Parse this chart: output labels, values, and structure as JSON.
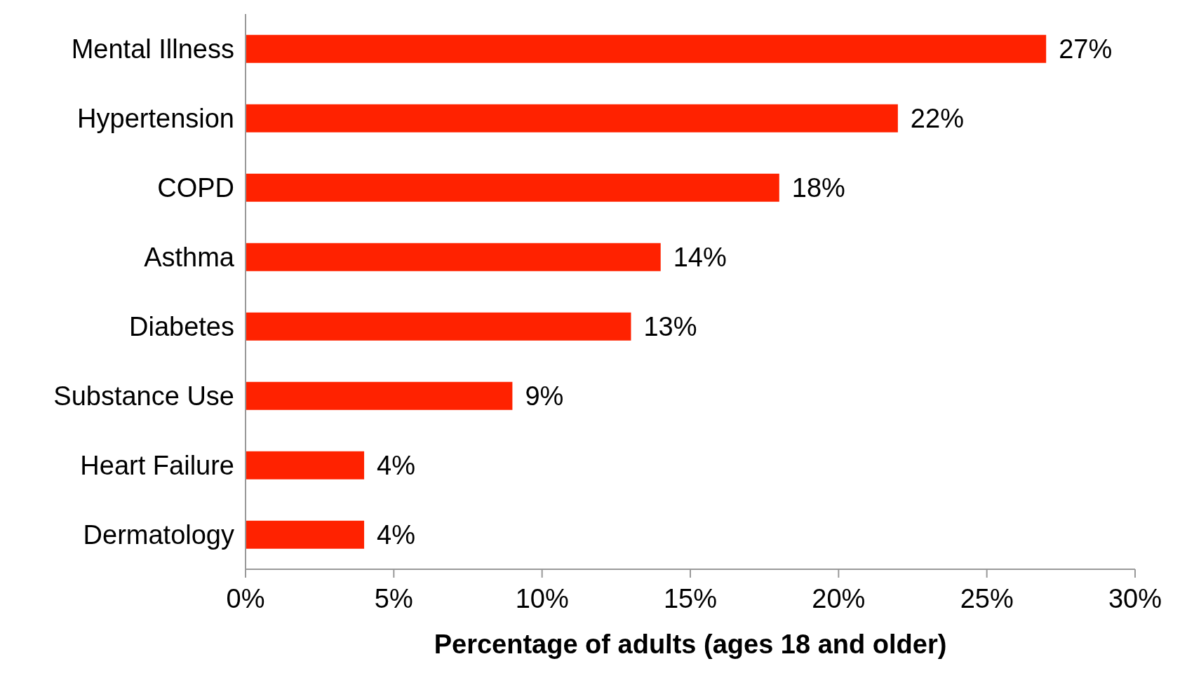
{
  "chart_data": {
    "type": "bar",
    "orientation": "horizontal",
    "categories": [
      "Mental Illness",
      "Hypertension",
      "COPD",
      "Asthma",
      "Diabetes",
      "Substance Use",
      "Heart Failure",
      "Dermatology"
    ],
    "values": [
      27,
      22,
      18,
      14,
      13,
      9,
      4,
      4
    ],
    "value_labels": [
      "27%",
      "22%",
      "18%",
      "14%",
      "13%",
      "9%",
      "4%",
      "4%"
    ],
    "color": "#ff2200",
    "xlabel": "Percentage of adults (ages 18 and older)",
    "xlim": [
      0,
      30
    ],
    "xticks": [
      {
        "value": 0,
        "label": "0%"
      },
      {
        "value": 5,
        "label": "5%"
      },
      {
        "value": 10,
        "label": "10%"
      },
      {
        "value": 15,
        "label": "15%"
      },
      {
        "value": 20,
        "label": "20%"
      },
      {
        "value": 25,
        "label": "25%"
      },
      {
        "value": 30,
        "label": "30%"
      }
    ],
    "grid": false,
    "legend": false
  }
}
